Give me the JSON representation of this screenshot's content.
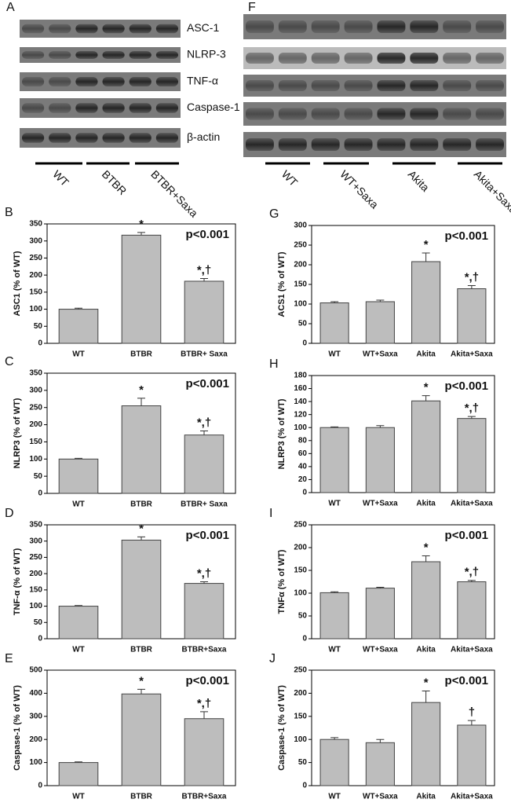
{
  "blots": [
    {
      "panel": "A",
      "rows": [
        "ASC-1",
        "NLRP-3",
        "TNF-α",
        "Caspase-1",
        "β-actin"
      ],
      "groups": [
        "WT",
        "BTBR",
        "BTBR+Saxa"
      ]
    },
    {
      "panel": "F",
      "groups": [
        "WT",
        "WT+Saxa",
        "Akita",
        "Akita+Saxa"
      ]
    }
  ],
  "chart_data": [
    {
      "type": "bar",
      "panel": "B",
      "ylabel": "ASC1 (% of WT)",
      "p_value": "p<0.001",
      "categories": [
        "WT",
        "BTBR",
        "BTBR+ Saxa"
      ],
      "values": [
        100,
        317,
        182
      ],
      "errors": [
        3,
        8,
        8
      ],
      "bar_labels": [
        null,
        "*",
        "*,†"
      ],
      "color": "#bdbdbd",
      "ylim": [
        0,
        350
      ],
      "yticks": [
        0,
        50,
        100,
        150,
        200,
        250,
        300,
        350
      ]
    },
    {
      "type": "bar",
      "panel": "C",
      "ylabel": "NLRP3 (% of WT)",
      "p_value": "p<0.001",
      "categories": [
        "WT",
        "BTBR",
        "BTBR+ Saxa"
      ],
      "values": [
        100,
        255,
        170
      ],
      "errors": [
        2,
        22,
        12
      ],
      "bar_labels": [
        null,
        "*",
        "*,†"
      ],
      "color": "#bdbdbd",
      "ylim": [
        0,
        350
      ],
      "yticks": [
        0,
        50,
        100,
        150,
        200,
        250,
        300,
        350
      ]
    },
    {
      "type": "bar",
      "panel": "D",
      "ylabel": "TNF-α (% of WT)",
      "p_value": "p<0.001",
      "categories": [
        "WT",
        "BTBR",
        "BTBR+Saxa"
      ],
      "values": [
        100,
        303,
        170
      ],
      "errors": [
        2,
        10,
        5
      ],
      "bar_labels": [
        null,
        "*",
        "*,†"
      ],
      "color": "#bdbdbd",
      "ylim": [
        0,
        350
      ],
      "yticks": [
        0,
        50,
        100,
        150,
        200,
        250,
        300,
        350
      ]
    },
    {
      "type": "bar",
      "panel": "E",
      "ylabel": "Caspase-1 (% of WT)",
      "p_value": "p<0.001",
      "categories": [
        "WT",
        "BTBR",
        "BTBR+Saxa"
      ],
      "values": [
        100,
        397,
        290
      ],
      "errors": [
        3,
        20,
        30
      ],
      "bar_labels": [
        null,
        "*",
        "*,†"
      ],
      "color": "#bdbdbd",
      "ylim": [
        0,
        500
      ],
      "yticks": [
        0,
        100,
        200,
        300,
        400,
        500
      ]
    },
    {
      "type": "bar",
      "panel": "G",
      "ylabel": "ACS1 (% of WT)",
      "p_value": "p<0.001",
      "categories": [
        "WT",
        "WT+Saxa",
        "Akita",
        "Akita+Saxa"
      ],
      "values": [
        103,
        106,
        208,
        139
      ],
      "errors": [
        3,
        4,
        22,
        8
      ],
      "bar_labels": [
        null,
        null,
        "*",
        "*,†"
      ],
      "color": "#bdbdbd",
      "ylim": [
        0,
        300
      ],
      "yticks": [
        0,
        50,
        100,
        150,
        200,
        250,
        300
      ]
    },
    {
      "type": "bar",
      "panel": "H",
      "ylabel": "NLRP3 (% of WT)",
      "p_value": "p<0.001",
      "categories": [
        "WT",
        "WT+Saxa",
        "Akita",
        "Akita+Saxa"
      ],
      "values": [
        100,
        100,
        141,
        114
      ],
      "errors": [
        1,
        3,
        8,
        3
      ],
      "bar_labels": [
        null,
        null,
        "*",
        "*,†"
      ],
      "color": "#bdbdbd",
      "ylim": [
        0,
        180
      ],
      "yticks": [
        0,
        20,
        40,
        60,
        80,
        100,
        120,
        140,
        160,
        180
      ]
    },
    {
      "type": "bar",
      "panel": "I",
      "ylabel": "TNFα (% of WT)",
      "p_value": "p<0.001",
      "categories": [
        "WT",
        "WT+Saxa",
        "Akita",
        "Akita+Saxa"
      ],
      "values": [
        101,
        111,
        169,
        125
      ],
      "errors": [
        2,
        2,
        13,
        3
      ],
      "bar_labels": [
        null,
        null,
        "*",
        "*,†"
      ],
      "color": "#bdbdbd",
      "ylim": [
        0,
        250
      ],
      "yticks": [
        0,
        50,
        100,
        150,
        200,
        250
      ]
    },
    {
      "type": "bar",
      "panel": "J",
      "ylabel": "Caspase-1 (% of WT)",
      "p_value": "p<0.001",
      "categories": [
        "WT",
        "WT+Saxa",
        "Akita",
        "Akita+Saxa"
      ],
      "values": [
        100,
        93,
        180,
        131
      ],
      "errors": [
        4,
        7,
        25,
        10
      ],
      "bar_labels": [
        null,
        null,
        "*",
        "†"
      ],
      "color": "#bdbdbd",
      "ylim": [
        0,
        250
      ],
      "yticks": [
        0,
        50,
        100,
        150,
        200,
        250
      ]
    }
  ]
}
